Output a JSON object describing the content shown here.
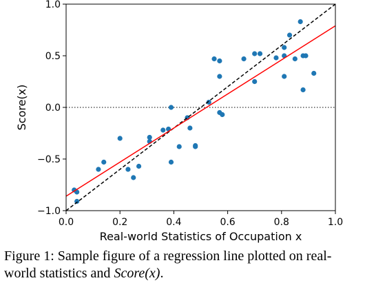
{
  "chart_data": {
    "type": "scatter",
    "xlabel": "Real-world Statistics of Occupation x",
    "ylabel": "Score(x)",
    "xlim": [
      0.0,
      1.0
    ],
    "ylim": [
      -1.0,
      1.0
    ],
    "x_ticks": [
      "0.0",
      "0.2",
      "0.4",
      "0.6",
      "0.8",
      "1.0"
    ],
    "y_ticks": [
      "1.0",
      "0.5",
      "0.0",
      "−0.5",
      "−1.0"
    ],
    "x_tick_values": [
      0.0,
      0.2,
      0.4,
      0.6,
      0.8,
      1.0
    ],
    "y_tick_values": [
      1.0,
      0.5,
      0.0,
      -0.5,
      -1.0
    ],
    "points_x": [
      0.03,
      0.04,
      0.04,
      0.12,
      0.14,
      0.2,
      0.23,
      0.25,
      0.27,
      0.31,
      0.31,
      0.36,
      0.38,
      0.39,
      0.39,
      0.42,
      0.45,
      0.46,
      0.48,
      0.48,
      0.53,
      0.55,
      0.57,
      0.57,
      0.57,
      0.58,
      0.66,
      0.7,
      0.7,
      0.72,
      0.78,
      0.81,
      0.81,
      0.81,
      0.83,
      0.85,
      0.87,
      0.88,
      0.88,
      0.89,
      0.92
    ],
    "points_y": [
      -0.8,
      -0.82,
      -0.91,
      -0.6,
      -0.53,
      -0.3,
      -0.6,
      -0.68,
      -0.57,
      -0.33,
      -0.29,
      -0.22,
      -0.21,
      -0.53,
      0.0,
      -0.38,
      -0.1,
      -0.2,
      -0.38,
      -0.37,
      0.05,
      0.47,
      0.45,
      0.3,
      -0.05,
      -0.07,
      0.47,
      0.52,
      0.25,
      0.52,
      0.48,
      0.58,
      0.5,
      0.3,
      0.7,
      0.47,
      0.83,
      0.5,
      0.17,
      0.5,
      0.33
    ],
    "point_color": "#1f77b4",
    "regression_line": {
      "x": [
        0.0,
        1.0
      ],
      "y": [
        -0.86,
        0.79
      ],
      "color": "#ff0000"
    },
    "identity_line": {
      "x": [
        0.0,
        1.0
      ],
      "y": [
        -1.0,
        1.0
      ],
      "color": "#000000",
      "style": "dashed"
    },
    "zero_line": {
      "y": 0.0,
      "color": "#000000",
      "style": "dotted"
    }
  },
  "caption": {
    "prefix": "Figure 1: ",
    "text": "Sample figure of a regression line plotted on real-world statistics and ",
    "math": "Score(x)",
    "suffix": "."
  }
}
